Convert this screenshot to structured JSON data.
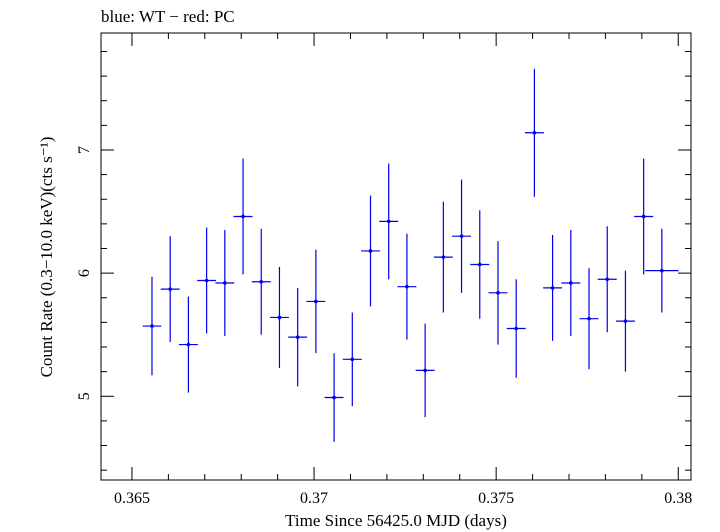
{
  "chart_data": {
    "type": "scatter",
    "title": "blue: WT − red: PC",
    "xlabel": "Time Since 56425.0 MJD (days)",
    "ylabel": "Count Rate (0.3−10.0 keV)(cts s⁻¹)",
    "xlim": [
      0.36415,
      0.38035
    ],
    "ylim": [
      4.32,
      7.95
    ],
    "x_ticks": [
      0.365,
      0.37,
      0.375,
      0.38
    ],
    "x_tick_labels": [
      "0.365",
      "0.37",
      "0.375",
      "0.38"
    ],
    "y_ticks": [
      5,
      6,
      7
    ],
    "y_tick_labels": [
      "5",
      "6",
      "7"
    ],
    "grid": false,
    "series": [
      {
        "color": "#0000ee",
        "points": [
          {
            "x": 0.36555,
            "y": 5.57,
            "xerr": 0.00026,
            "yerr": 0.4
          },
          {
            "x": 0.36605,
            "y": 5.87,
            "xerr": 0.00026,
            "yerr": 0.43
          },
          {
            "x": 0.36655,
            "y": 5.42,
            "xerr": 0.00026,
            "yerr": 0.39
          },
          {
            "x": 0.36705,
            "y": 5.94,
            "xerr": 0.00026,
            "yerr": 0.43
          },
          {
            "x": 0.36755,
            "y": 5.92,
            "xerr": 0.00026,
            "yerr": 0.43
          },
          {
            "x": 0.36805,
            "y": 6.46,
            "xerr": 0.00026,
            "yerr": 0.47
          },
          {
            "x": 0.36855,
            "y": 5.93,
            "xerr": 0.00026,
            "yerr": 0.43
          },
          {
            "x": 0.36905,
            "y": 5.64,
            "xerr": 0.00026,
            "yerr": 0.41
          },
          {
            "x": 0.36955,
            "y": 5.48,
            "xerr": 0.00026,
            "yerr": 0.4
          },
          {
            "x": 0.37005,
            "y": 5.77,
            "xerr": 0.00026,
            "yerr": 0.42
          },
          {
            "x": 0.37055,
            "y": 4.99,
            "xerr": 0.00026,
            "yerr": 0.36
          },
          {
            "x": 0.37105,
            "y": 5.3,
            "xerr": 0.00026,
            "yerr": 0.38
          },
          {
            "x": 0.37155,
            "y": 6.18,
            "xerr": 0.00026,
            "yerr": 0.45
          },
          {
            "x": 0.37205,
            "y": 6.42,
            "xerr": 0.00026,
            "yerr": 0.47
          },
          {
            "x": 0.37255,
            "y": 5.89,
            "xerr": 0.00026,
            "yerr": 0.43
          },
          {
            "x": 0.37305,
            "y": 5.21,
            "xerr": 0.00026,
            "yerr": 0.38
          },
          {
            "x": 0.37355,
            "y": 6.13,
            "xerr": 0.00026,
            "yerr": 0.45
          },
          {
            "x": 0.37405,
            "y": 6.3,
            "xerr": 0.00026,
            "yerr": 0.46
          },
          {
            "x": 0.37455,
            "y": 6.07,
            "xerr": 0.00026,
            "yerr": 0.44
          },
          {
            "x": 0.37505,
            "y": 5.84,
            "xerr": 0.00026,
            "yerr": 0.42
          },
          {
            "x": 0.37555,
            "y": 5.55,
            "xerr": 0.00026,
            "yerr": 0.4
          },
          {
            "x": 0.37605,
            "y": 7.14,
            "xerr": 0.00026,
            "yerr": 0.52
          },
          {
            "x": 0.37655,
            "y": 5.88,
            "xerr": 0.00026,
            "yerr": 0.43
          },
          {
            "x": 0.37705,
            "y": 5.92,
            "xerr": 0.00026,
            "yerr": 0.43
          },
          {
            "x": 0.37755,
            "y": 5.63,
            "xerr": 0.00026,
            "yerr": 0.41
          },
          {
            "x": 0.37805,
            "y": 5.95,
            "xerr": 0.00026,
            "yerr": 0.43
          },
          {
            "x": 0.37855,
            "y": 5.61,
            "xerr": 0.00026,
            "yerr": 0.41
          },
          {
            "x": 0.37905,
            "y": 6.46,
            "xerr": 0.00026,
            "yerr": 0.47
          },
          {
            "x": 0.37955,
            "y": 6.02,
            "xerr": 0.00046,
            "yerr": 0.34
          }
        ]
      }
    ]
  }
}
